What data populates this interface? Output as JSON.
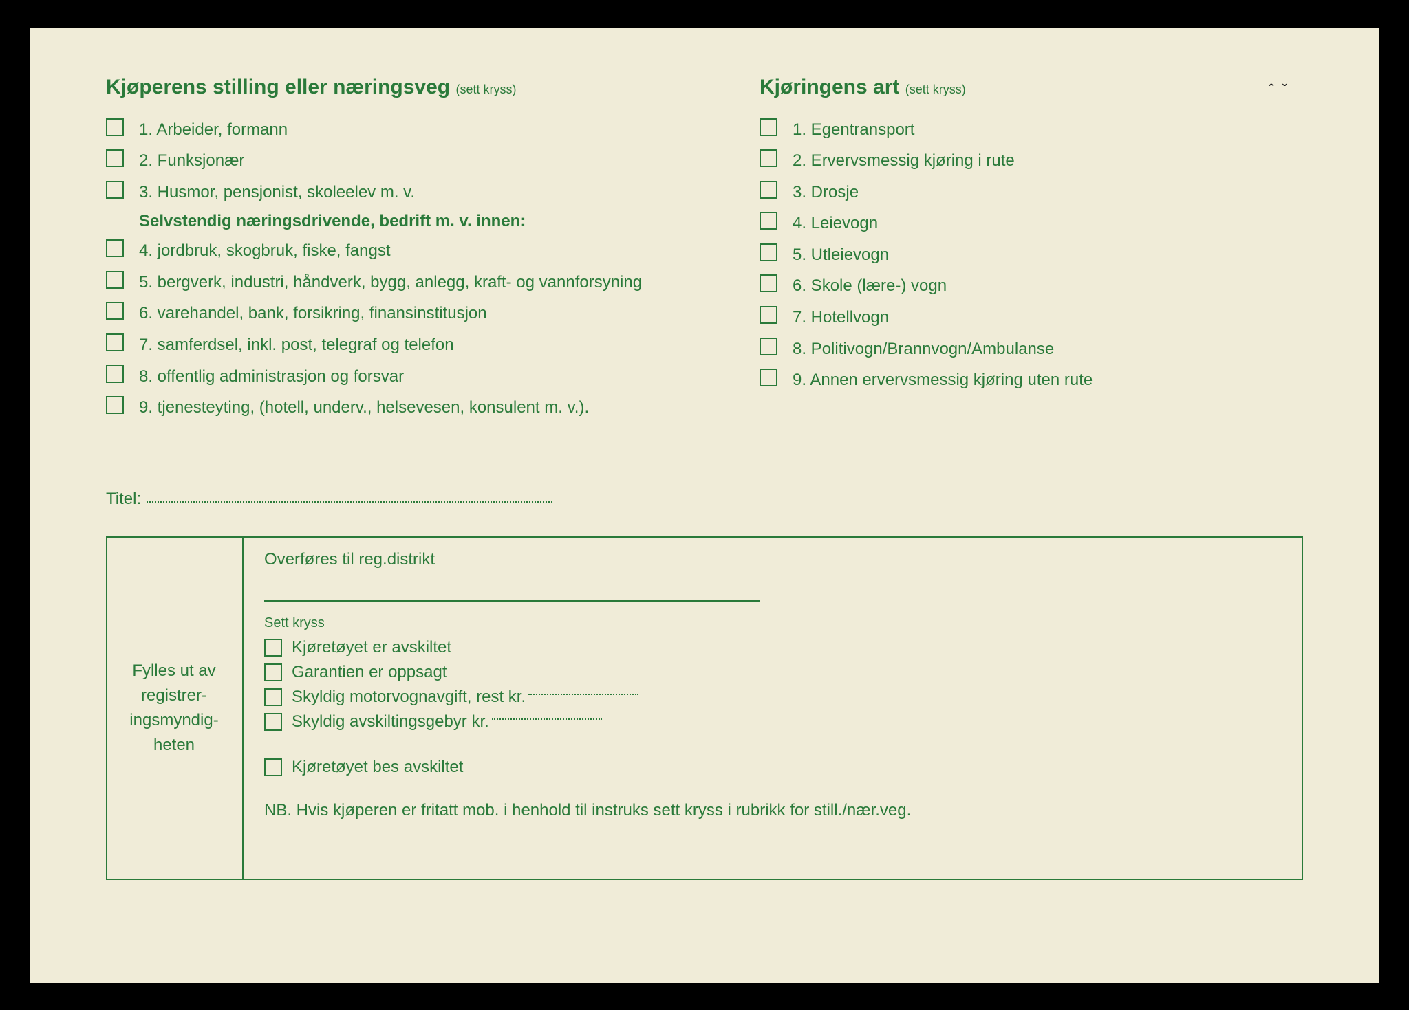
{
  "left": {
    "title": "Kjøperens stilling eller næringsveg",
    "titleHint": "(sett kryss)",
    "items1": [
      "1. Arbeider, formann",
      "2. Funksjonær",
      "3. Husmor, pensjonist, skoleelev m. v."
    ],
    "subHeading": "Selvstendig næringsdrivende, bedrift m. v. innen:",
    "items2": [
      "4. jordbruk, skogbruk, fiske, fangst",
      "5. bergverk, industri, håndverk, bygg, anlegg, kraft- og vannforsyning",
      "6. varehandel, bank, forsikring, finansinstitusjon",
      "7. samferdsel, inkl. post, telegraf og telefon",
      "8. offentlig administrasjon og forsvar",
      "9. tjenesteyting, (hotell, underv., helsevesen, konsulent m. v.)."
    ]
  },
  "right": {
    "title": "Kjøringens art",
    "titleHint": "(sett kryss)",
    "items": [
      "1. Egentransport",
      "2. Ervervsmessig kjøring i rute",
      "3. Drosje",
      "4. Leievogn",
      "5. Utleievogn",
      "6. Skole (lære-) vogn",
      "7. Hotellvogn",
      "8. Politivogn/Brannvogn/Ambulanse",
      "9. Annen ervervsmessig kjøring uten rute"
    ]
  },
  "titelLabel": "Titel:",
  "authBox": {
    "leftLabel": "Fylles ut av registrer-ingsmyndig-heten",
    "transferLabel": "Overføres til reg.distrikt",
    "settKryss": "Sett kryss",
    "items": [
      "Kjøretøyet er avskiltet",
      "Garantien er oppsagt",
      "Skyldig motorvognavgift, rest kr.",
      "Skyldig avskiltingsgebyr kr."
    ],
    "itemSeparate": "Kjøretøyet bes avskiltet",
    "nb": "NB.  Hvis kjøperen er fritatt mob. i henhold til instruks sett kryss i rubrikk for still./nær.veg."
  },
  "colors": {
    "ink": "#2a7a3a",
    "paper": "#f0ecd8"
  }
}
